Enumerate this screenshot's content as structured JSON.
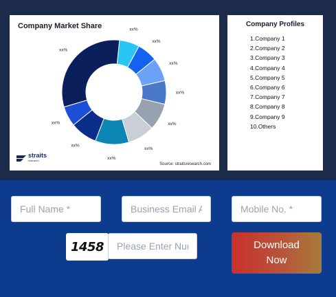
{
  "chart_data": {
    "type": "pie",
    "title": "Company Market Share",
    "donut": true,
    "categories": [
      "Company 1",
      "Company 2",
      "Company 3",
      "Company 4",
      "Company 5",
      "Company 6",
      "Company 7",
      "Company 8",
      "Company 9",
      "Others"
    ],
    "values": [
      6,
      6,
      7,
      7,
      8,
      8,
      10,
      8,
      6,
      30
    ],
    "data_labels": [
      "xx%",
      "xx%",
      "xx%",
      "xx%",
      "xx%",
      "xx%",
      "xx%",
      "xx%",
      "xx%",
      "xx%"
    ],
    "colors": [
      "#29c6f3",
      "#1463f0",
      "#6aa2f5",
      "#4a78c9",
      "#97a1b0",
      "#c9ced7",
      "#0e86b3",
      "#0a2e8a",
      "#1a4fd6",
      "#0b1f5c"
    ],
    "source": "Source: straitsresearch.com"
  },
  "brand": {
    "logo_text": "straits",
    "logo_sub": "research"
  },
  "profiles": {
    "title": "Company Profiles",
    "items": [
      "1.Company 1",
      "2.Company 2",
      "3.Company 3",
      "4.Company 4",
      "5.Company 5",
      "6.Company 6",
      "7.Company 7",
      "8.Company 8",
      "9.Company 9",
      "10.Others"
    ]
  },
  "form": {
    "full_name_placeholder": "Full Name *",
    "email_placeholder": "Business Email Address *",
    "mobile_placeholder": "Mobile No. *",
    "captcha_text": "1458",
    "captcha_input_placeholder": "Please Enter Number",
    "download_line1": "Download",
    "download_line2": "Now"
  }
}
